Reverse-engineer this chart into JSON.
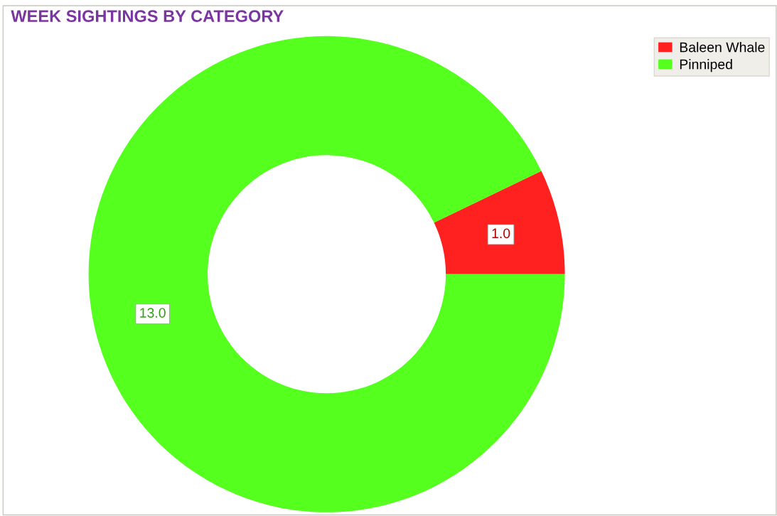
{
  "chart_data": {
    "type": "donut",
    "title": "WEEK SIGHTINGS BY CATEGORY",
    "categories": [
      "Baleen Whale",
      "Pinniped"
    ],
    "values": [
      1.0,
      13.0
    ],
    "colors": [
      "#ff2020",
      "#55ff1e"
    ],
    "value_labels": [
      "1.0",
      "13.0"
    ],
    "legend": "top right"
  }
}
